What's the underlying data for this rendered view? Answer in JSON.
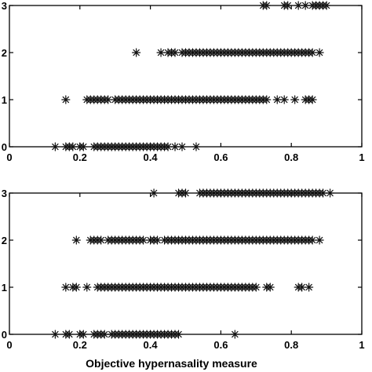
{
  "chart_data": [
    {
      "type": "scatter",
      "marker": "star",
      "xlim": [
        0,
        1
      ],
      "ylim": [
        0,
        3
      ],
      "xticks": [
        "0",
        "0.2",
        "0.4",
        "0.6",
        "0.8",
        "1"
      ],
      "yticks": [
        "0",
        "1",
        "2",
        "3"
      ],
      "xlabel": "",
      "points": {
        "0": [
          0.13,
          0.16,
          0.17,
          0.18,
          0.2,
          0.21,
          0.24,
          0.25,
          0.26,
          0.27,
          0.28,
          0.29,
          0.3,
          0.31,
          0.32,
          0.33,
          0.34,
          0.35,
          0.36,
          0.37,
          0.38,
          0.39,
          0.4,
          0.41,
          0.42,
          0.43,
          0.44,
          0.45,
          0.47,
          0.49,
          0.53
        ],
        "1": [
          0.16,
          0.22,
          0.23,
          0.24,
          0.25,
          0.26,
          0.27,
          0.28,
          0.3,
          0.31,
          0.32,
          0.33,
          0.34,
          0.35,
          0.36,
          0.37,
          0.38,
          0.39,
          0.4,
          0.41,
          0.42,
          0.43,
          0.44,
          0.45,
          0.46,
          0.47,
          0.48,
          0.49,
          0.5,
          0.51,
          0.52,
          0.53,
          0.54,
          0.55,
          0.56,
          0.57,
          0.58,
          0.59,
          0.6,
          0.61,
          0.62,
          0.63,
          0.64,
          0.65,
          0.66,
          0.67,
          0.68,
          0.69,
          0.7,
          0.71,
          0.72,
          0.73,
          0.76,
          0.78,
          0.81,
          0.84,
          0.85,
          0.86
        ],
        "2": [
          0.36,
          0.43,
          0.45,
          0.46,
          0.47,
          0.49,
          0.5,
          0.51,
          0.52,
          0.53,
          0.54,
          0.55,
          0.56,
          0.57,
          0.58,
          0.59,
          0.6,
          0.61,
          0.62,
          0.63,
          0.64,
          0.65,
          0.66,
          0.67,
          0.68,
          0.69,
          0.7,
          0.71,
          0.72,
          0.73,
          0.74,
          0.75,
          0.76,
          0.77,
          0.78,
          0.79,
          0.8,
          0.81,
          0.82,
          0.83,
          0.84,
          0.85,
          0.86,
          0.88
        ],
        "3": [
          0.72,
          0.73,
          0.78,
          0.79,
          0.82,
          0.84,
          0.86,
          0.87,
          0.88,
          0.89,
          0.9
        ]
      }
    },
    {
      "type": "scatter",
      "marker": "star",
      "xlim": [
        0,
        1
      ],
      "ylim": [
        0,
        3
      ],
      "xticks": [
        "0",
        "0.2",
        "0.4",
        "0.6",
        "0.8",
        "1"
      ],
      "yticks": [
        "0",
        "1",
        "2",
        "3"
      ],
      "xlabel": "Objective hypernasality measure",
      "points": {
        "0": [
          0.13,
          0.16,
          0.17,
          0.2,
          0.21,
          0.24,
          0.25,
          0.26,
          0.27,
          0.29,
          0.3,
          0.31,
          0.32,
          0.33,
          0.34,
          0.35,
          0.36,
          0.37,
          0.38,
          0.39,
          0.4,
          0.41,
          0.42,
          0.43,
          0.44,
          0.45,
          0.46,
          0.47,
          0.48,
          0.64
        ],
        "1": [
          0.16,
          0.18,
          0.19,
          0.22,
          0.25,
          0.26,
          0.27,
          0.28,
          0.29,
          0.3,
          0.31,
          0.32,
          0.33,
          0.34,
          0.35,
          0.36,
          0.37,
          0.38,
          0.39,
          0.4,
          0.41,
          0.42,
          0.43,
          0.44,
          0.45,
          0.46,
          0.47,
          0.48,
          0.49,
          0.5,
          0.51,
          0.52,
          0.53,
          0.54,
          0.55,
          0.56,
          0.57,
          0.58,
          0.59,
          0.6,
          0.61,
          0.62,
          0.63,
          0.64,
          0.65,
          0.66,
          0.67,
          0.68,
          0.69,
          0.7,
          0.73,
          0.74,
          0.82,
          0.83,
          0.85
        ],
        "2": [
          0.19,
          0.23,
          0.24,
          0.25,
          0.26,
          0.28,
          0.29,
          0.3,
          0.31,
          0.32,
          0.33,
          0.34,
          0.35,
          0.36,
          0.37,
          0.38,
          0.4,
          0.41,
          0.42,
          0.44,
          0.45,
          0.46,
          0.47,
          0.48,
          0.49,
          0.5,
          0.51,
          0.52,
          0.53,
          0.54,
          0.55,
          0.56,
          0.57,
          0.58,
          0.59,
          0.6,
          0.61,
          0.62,
          0.63,
          0.64,
          0.65,
          0.66,
          0.67,
          0.68,
          0.69,
          0.7,
          0.71,
          0.72,
          0.73,
          0.74,
          0.75,
          0.76,
          0.77,
          0.78,
          0.79,
          0.8,
          0.81,
          0.82,
          0.83,
          0.84,
          0.85,
          0.86,
          0.88
        ],
        "3": [
          0.41,
          0.48,
          0.49,
          0.5,
          0.54,
          0.55,
          0.56,
          0.57,
          0.58,
          0.59,
          0.6,
          0.61,
          0.62,
          0.63,
          0.64,
          0.65,
          0.66,
          0.67,
          0.68,
          0.69,
          0.7,
          0.71,
          0.72,
          0.73,
          0.74,
          0.75,
          0.76,
          0.77,
          0.78,
          0.79,
          0.8,
          0.81,
          0.82,
          0.83,
          0.84,
          0.85,
          0.86,
          0.87,
          0.88,
          0.89,
          0.91
        ]
      }
    }
  ]
}
